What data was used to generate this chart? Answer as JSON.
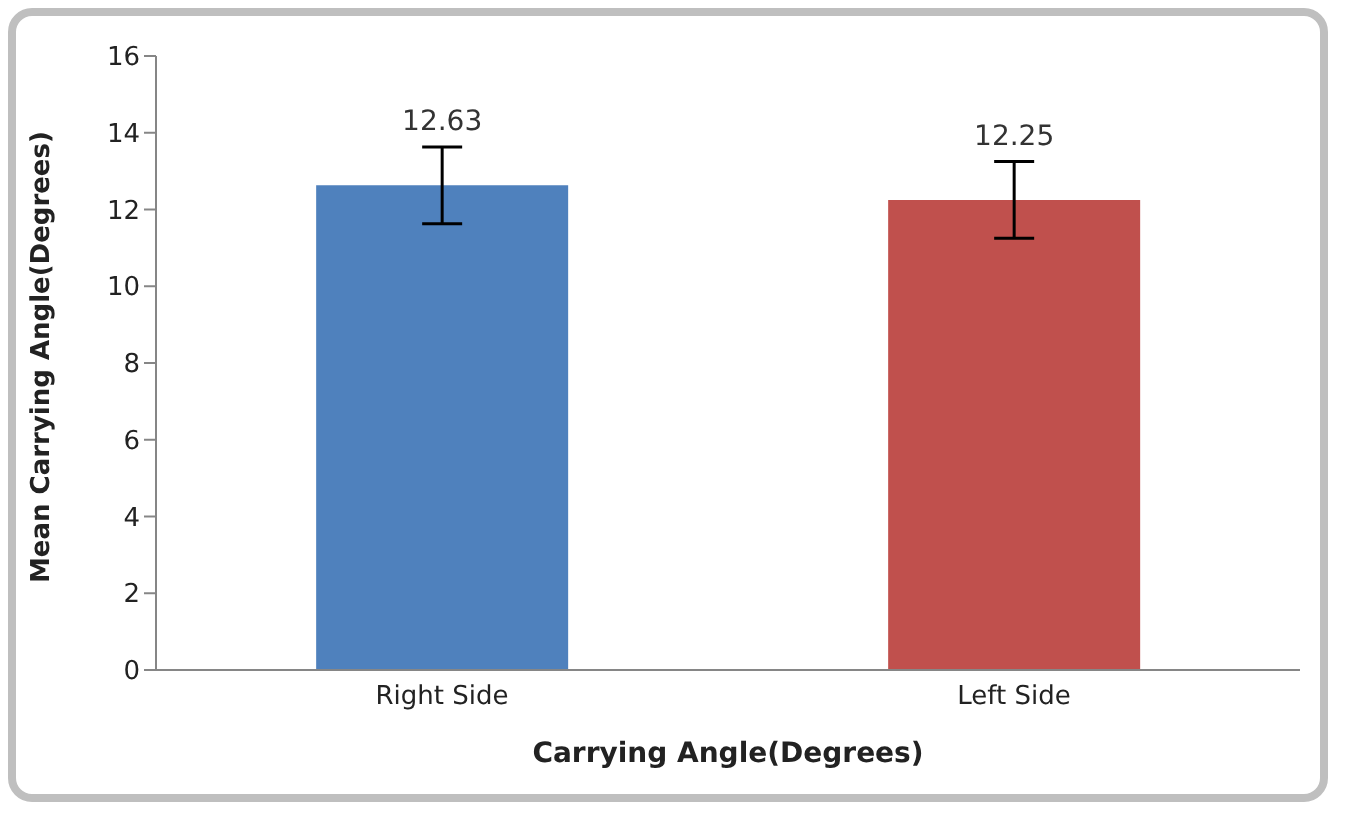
{
  "chart_data": {
    "type": "bar",
    "xlabel": "Carrying Angle(Degrees)",
    "ylabel": "Mean Carrying Angle(Degrees)",
    "categories": [
      "Right Side",
      "Left Side"
    ],
    "values": [
      12.63,
      12.25
    ],
    "colors": [
      "#4f81bd",
      "#c0504d"
    ],
    "errors": [
      1.0,
      1.0
    ],
    "data_labels": true,
    "ylim": [
      0,
      16
    ],
    "yticks": [
      0,
      2,
      4,
      6,
      8,
      10,
      12,
      14,
      16
    ]
  }
}
